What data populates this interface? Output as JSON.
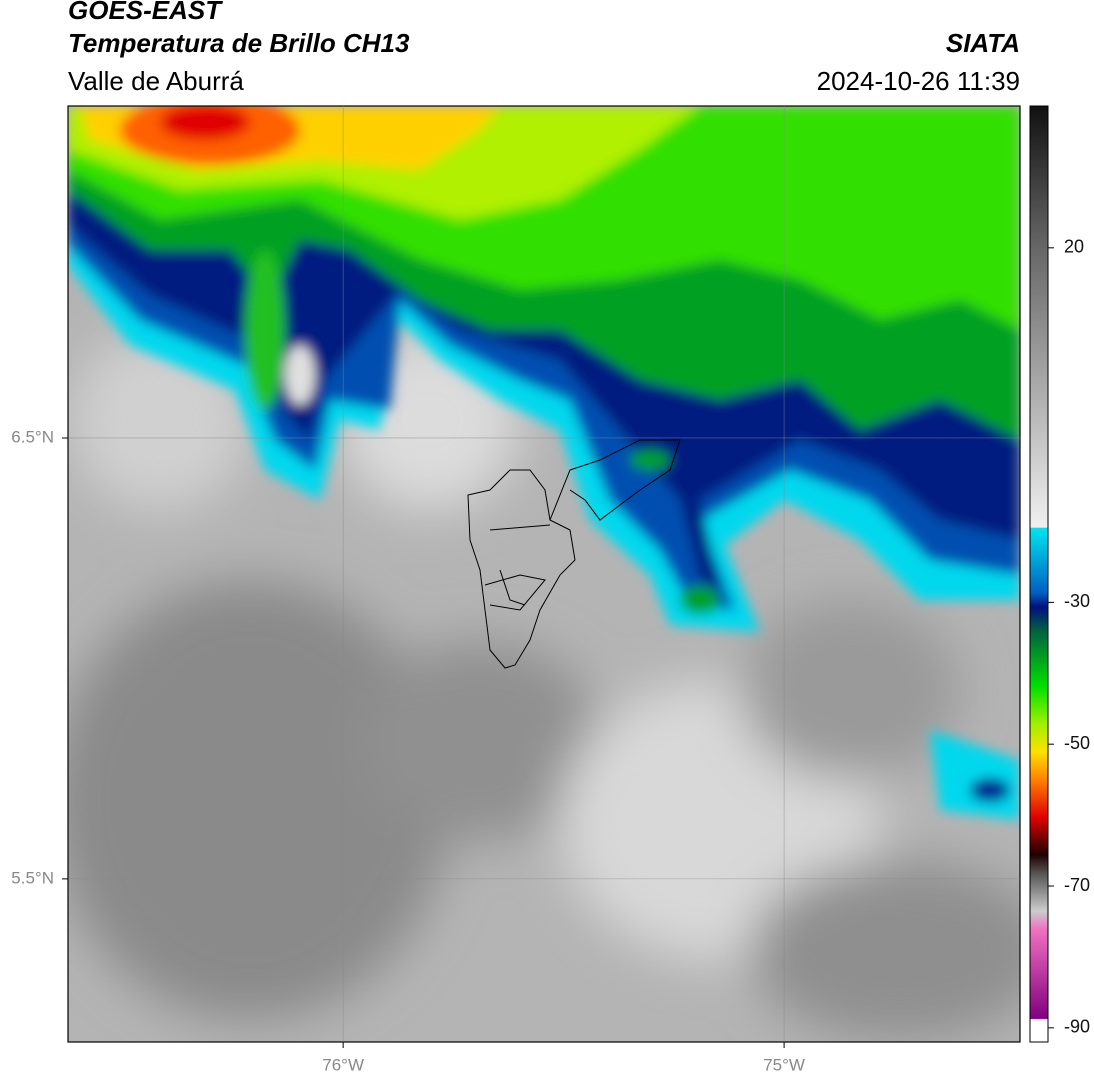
{
  "header": {
    "title": "GOES-EAST",
    "subtitle": "Temperatura de Brillo CH13",
    "region": "Valle de Aburrá",
    "source": "SIATA",
    "datetime": "2024-10-26 11:39"
  },
  "map": {
    "xlim": [
      -76.624,
      -74.465
    ],
    "ylim": [
      5.13,
      7.253
    ],
    "xticks": [
      {
        "value": -76,
        "label": "76°W"
      },
      {
        "value": -75,
        "label": "75°W"
      }
    ],
    "yticks": [
      {
        "value": 6.5,
        "label": "6.5°N"
      },
      {
        "value": 5.5,
        "label": "5.5°N"
      }
    ],
    "grid": true
  },
  "colorbar": {
    "lim": [
      -92,
      40
    ],
    "ticks": [
      20,
      -30,
      -50,
      -70,
      -90
    ]
  }
}
